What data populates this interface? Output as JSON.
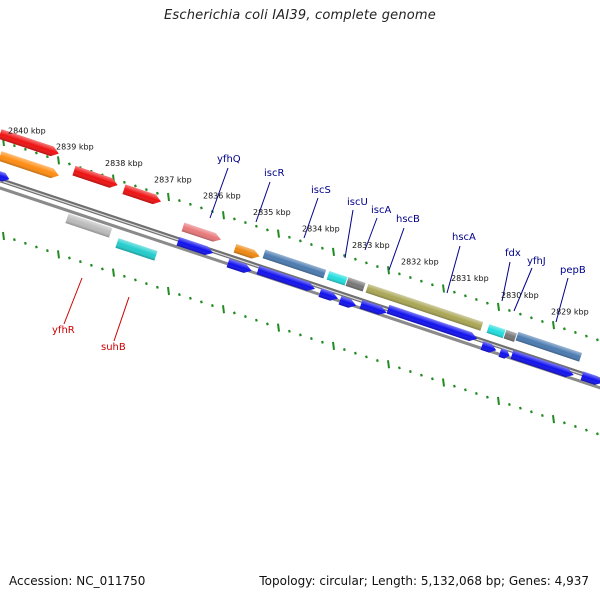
{
  "title": "Escherichia coli IAI39, complete genome",
  "footer": {
    "accession": "Accession: NC_011750",
    "topology": "Topology: circular; Length: 5,132,068 bp; Genes: 4,937"
  },
  "colors": {
    "backbone": "#777777",
    "tick": "#228b22",
    "label_blue": "#00008b",
    "label_red": "#cc0000"
  },
  "kbp_labels": [
    "2840 kbp",
    "2839 kbp",
    "2838 kbp",
    "2837 kbp",
    "2836 kbp",
    "2835 kbp",
    "2834 kbp",
    "2833 kbp",
    "2832 kbp",
    "2831 kbp",
    "2830 kbp",
    "2829 kbp"
  ],
  "gene_labels": [
    {
      "name": "yfhQ",
      "color": "blue"
    },
    {
      "name": "iscR",
      "color": "blue"
    },
    {
      "name": "iscS",
      "color": "blue"
    },
    {
      "name": "iscU",
      "color": "blue"
    },
    {
      "name": "iscA",
      "color": "blue"
    },
    {
      "name": "hscB",
      "color": "blue"
    },
    {
      "name": "hscA",
      "color": "blue"
    },
    {
      "name": "fdx",
      "color": "blue"
    },
    {
      "name": "yfhJ",
      "color": "blue"
    },
    {
      "name": "pepB",
      "color": "blue"
    },
    {
      "name": "yfhR",
      "color": "red"
    },
    {
      "name": "suhB",
      "color": "red"
    }
  ]
}
